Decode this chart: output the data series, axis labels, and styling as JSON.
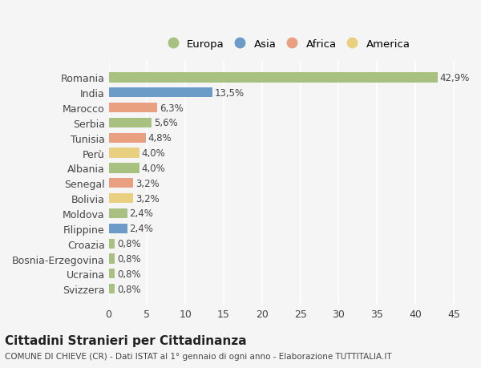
{
  "countries": [
    "Romania",
    "India",
    "Marocco",
    "Serbia",
    "Tunisia",
    "Perù",
    "Albania",
    "Senegal",
    "Bolivia",
    "Moldova",
    "Filippine",
    "Croazia",
    "Bosnia-Erzegovina",
    "Ucraina",
    "Svizzera"
  ],
  "values": [
    42.9,
    13.5,
    6.3,
    5.6,
    4.8,
    4.0,
    4.0,
    3.2,
    3.2,
    2.4,
    2.4,
    0.8,
    0.8,
    0.8,
    0.8
  ],
  "labels": [
    "42,9%",
    "13,5%",
    "6,3%",
    "5,6%",
    "4,8%",
    "4,0%",
    "4,0%",
    "3,2%",
    "3,2%",
    "2,4%",
    "2,4%",
    "0,8%",
    "0,8%",
    "0,8%",
    "0,8%"
  ],
  "continents": [
    "Europa",
    "Asia",
    "Africa",
    "Europa",
    "Africa",
    "America",
    "Europa",
    "Africa",
    "America",
    "Europa",
    "Asia",
    "Europa",
    "Europa",
    "Europa",
    "Europa"
  ],
  "continent_colors": {
    "Europa": "#a8c080",
    "Asia": "#6b9bc8",
    "Africa": "#e8a080",
    "America": "#e8d080"
  },
  "legend_items": [
    "Europa",
    "Asia",
    "Africa",
    "America"
  ],
  "background_color": "#f5f5f5",
  "title": "Cittadini Stranieri per Cittadinanza",
  "subtitle": "COMUNE DI CHIEVE (CR) - Dati ISTAT al 1° gennaio di ogni anno - Elaborazione TUTTITALIA.IT",
  "xlim": [
    0,
    47
  ],
  "xticks": [
    0,
    5,
    10,
    15,
    20,
    25,
    30,
    35,
    40,
    45
  ]
}
